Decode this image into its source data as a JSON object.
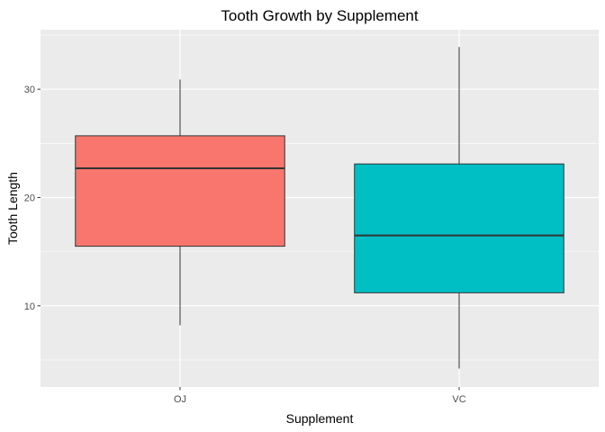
{
  "chart_data": {
    "type": "boxplot",
    "title": "Tooth Growth by Supplement",
    "xlabel": "Supplement",
    "ylabel": "Tooth Length",
    "categories": [
      "OJ",
      "VC"
    ],
    "ylim": [
      2.5,
      35.5
    ],
    "y_ticks": [
      10,
      20,
      30
    ],
    "y_tick_labels": [
      "10",
      "20",
      "30"
    ],
    "grid": true,
    "background": "#ebebeb",
    "gridline_color": "#ffffff",
    "boxes": [
      {
        "category": "OJ",
        "min": 8.2,
        "q1": 15.5,
        "median": 22.7,
        "q3": 25.7,
        "max": 30.9,
        "color": "#f8766d"
      },
      {
        "category": "VC",
        "min": 4.2,
        "q1": 11.2,
        "median": 16.5,
        "q3": 23.1,
        "max": 33.9,
        "color": "#00bfc4"
      }
    ]
  }
}
